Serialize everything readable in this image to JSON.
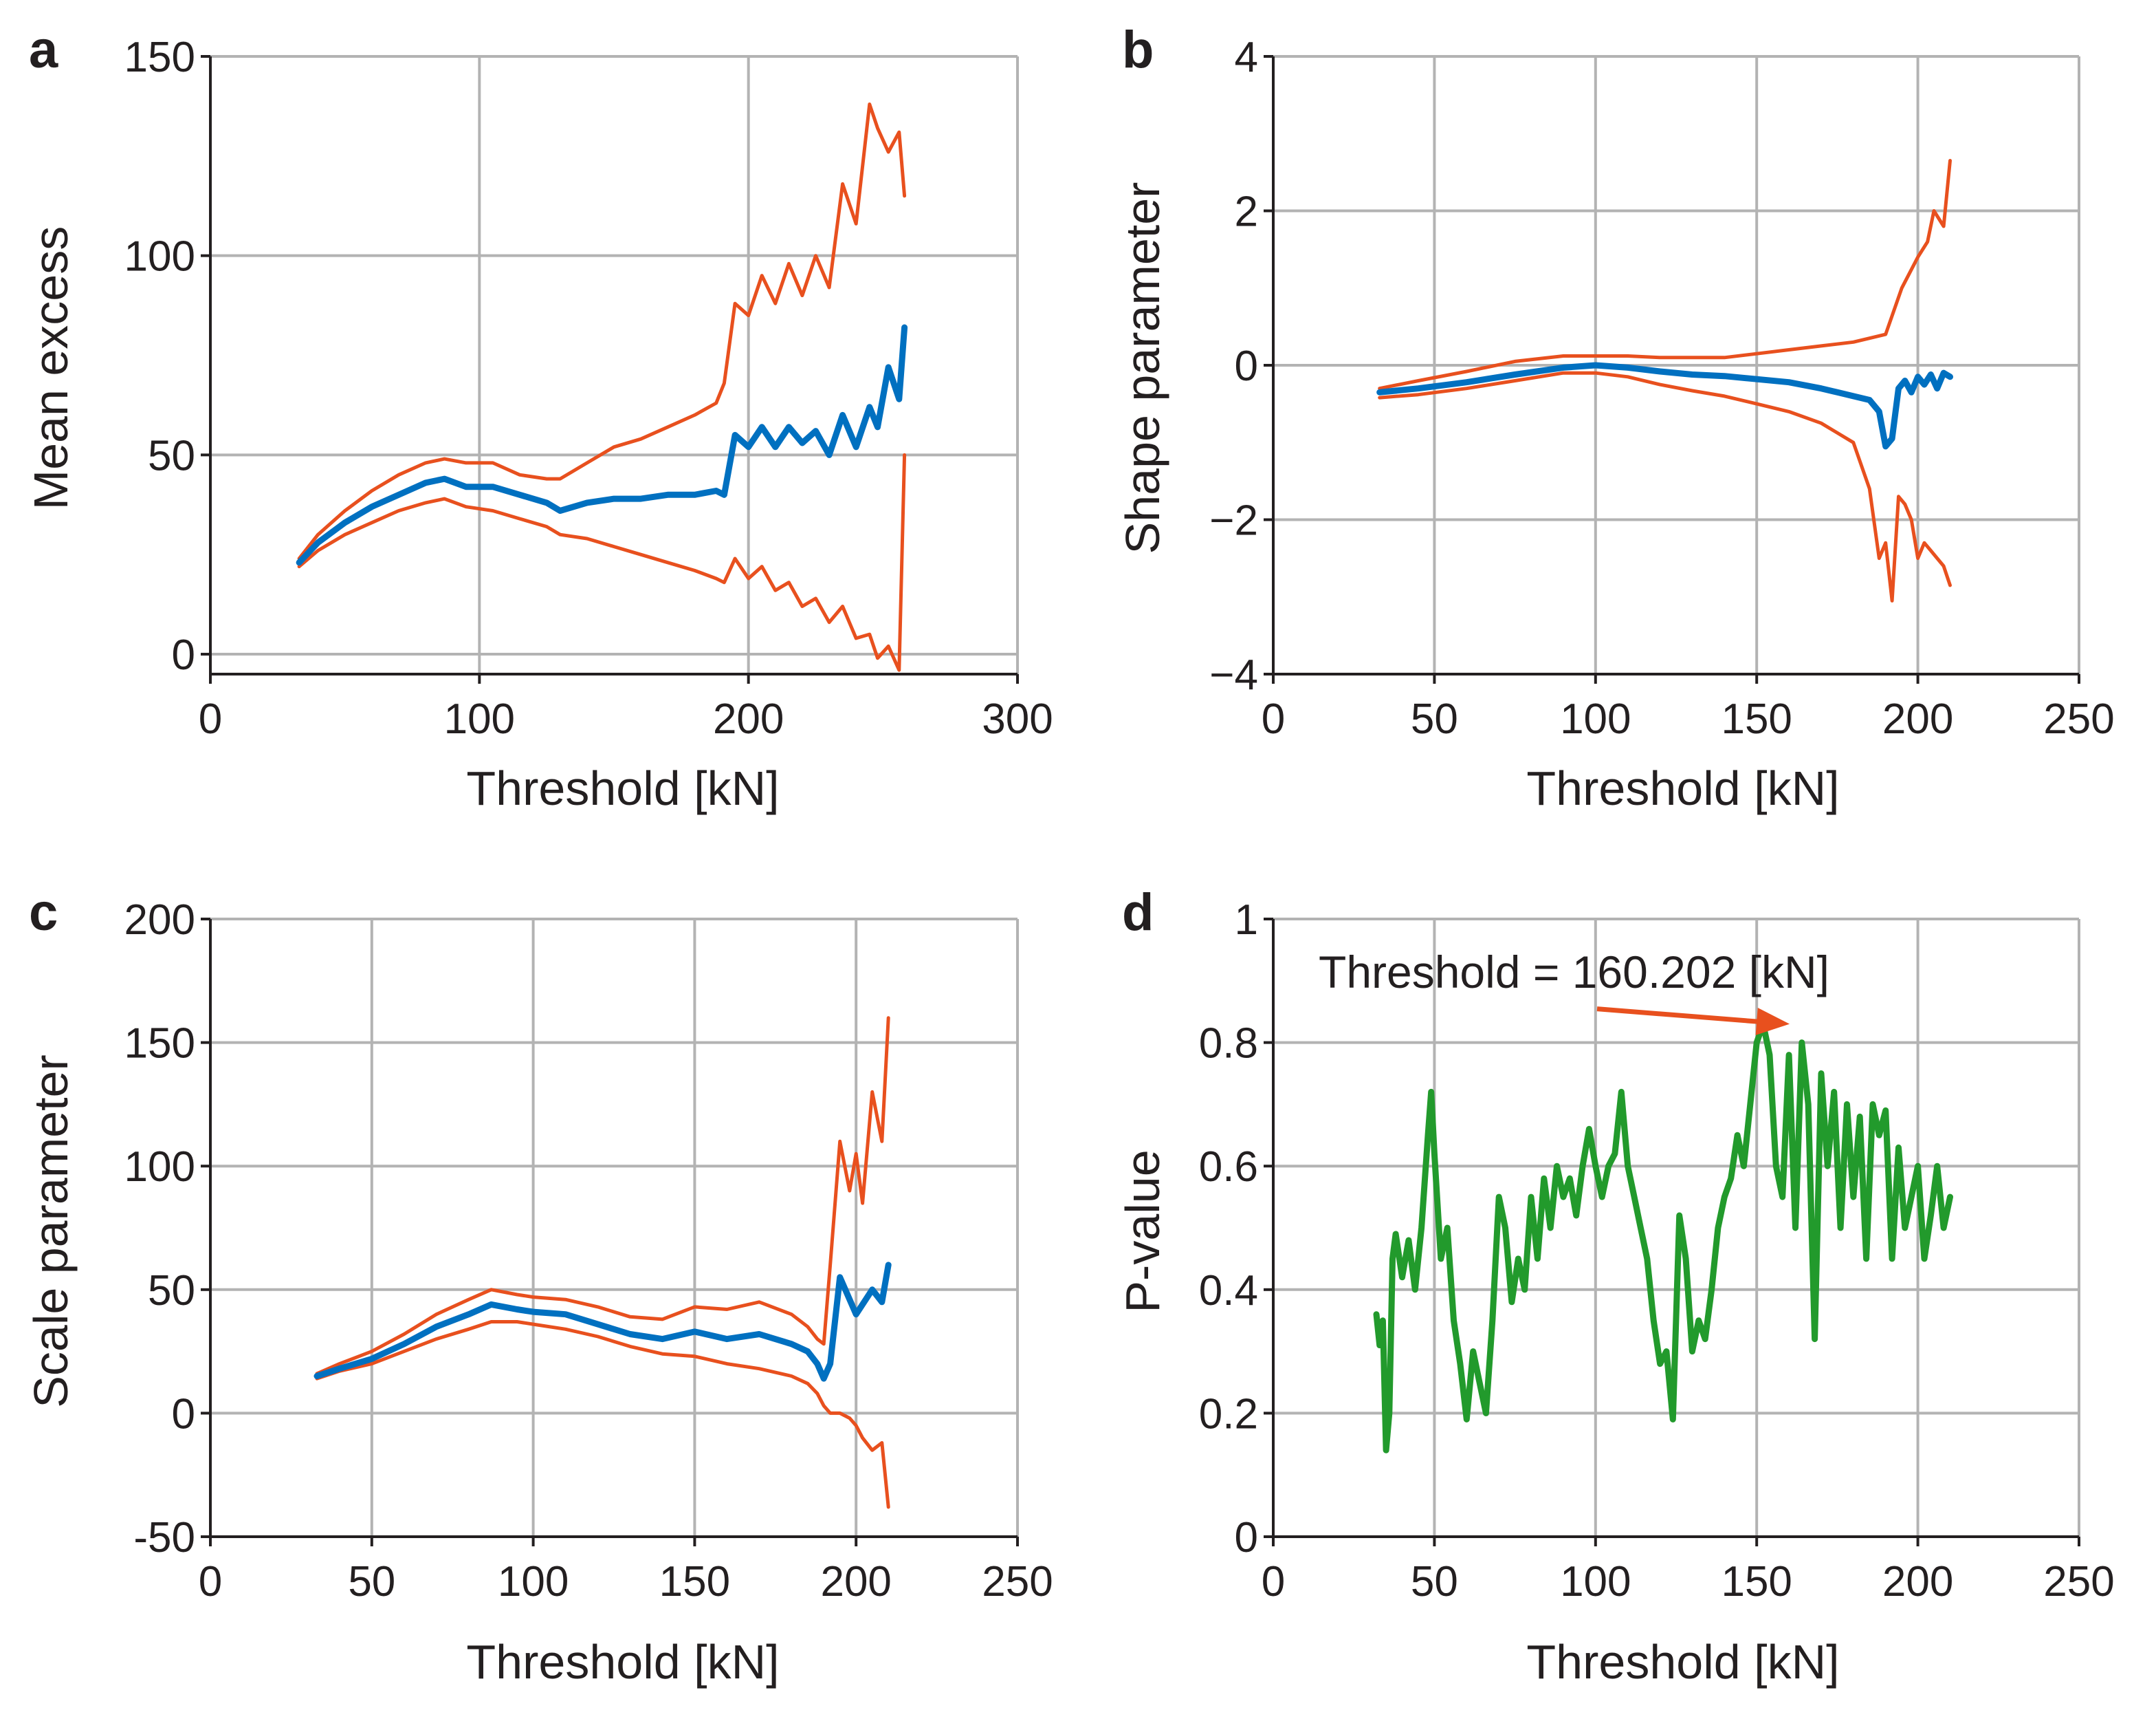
{
  "colors": {
    "central": "#0070c0",
    "bounds": "#e8501e",
    "pvalue": "#229a2c",
    "text": "#231f20",
    "grid": "#b3b3b3"
  },
  "chart_data": [
    {
      "id": "a",
      "panel_label": "a",
      "type": "line",
      "xlabel": "Threshold [kN]",
      "ylabel": "Mean excess",
      "xlim": [
        0,
        300
      ],
      "ylim": [
        -5,
        150
      ],
      "xticks": [
        0,
        100,
        200,
        300
      ],
      "yticks": [
        0,
        50,
        100,
        150
      ],
      "xtick_labels": [
        "0",
        "100",
        "200",
        "300"
      ],
      "ytick_labels": [
        "0",
        "50",
        "100",
        "150"
      ],
      "grid": true,
      "series": [
        {
          "name": "estimate",
          "role": "central",
          "x": [
            33,
            40,
            50,
            60,
            70,
            80,
            87,
            95,
            105,
            115,
            125,
            130,
            140,
            150,
            160,
            170,
            180,
            188,
            191,
            195,
            200,
            205,
            210,
            215,
            220,
            225,
            230,
            235,
            240,
            245,
            248,
            252,
            256,
            258
          ],
          "y": [
            23,
            28,
            33,
            37,
            40,
            43,
            44,
            42,
            42,
            40,
            38,
            36,
            38,
            39,
            39,
            40,
            40,
            41,
            40,
            55,
            52,
            57,
            52,
            57,
            53,
            56,
            50,
            60,
            52,
            62,
            57,
            72,
            64,
            82
          ]
        },
        {
          "name": "upper bound",
          "role": "bounds",
          "x": [
            33,
            40,
            50,
            60,
            70,
            80,
            87,
            95,
            105,
            115,
            125,
            130,
            140,
            150,
            160,
            170,
            180,
            188,
            191,
            195,
            200,
            205,
            210,
            215,
            220,
            225,
            230,
            235,
            240,
            245,
            248,
            252,
            256,
            258
          ],
          "y": [
            24,
            30,
            36,
            41,
            45,
            48,
            49,
            48,
            48,
            45,
            44,
            44,
            48,
            52,
            54,
            57,
            60,
            63,
            68,
            88,
            85,
            95,
            88,
            98,
            90,
            100,
            92,
            118,
            108,
            138,
            132,
            126,
            131,
            115
          ]
        },
        {
          "name": "lower bound",
          "role": "bounds",
          "x": [
            33,
            40,
            50,
            60,
            70,
            80,
            87,
            95,
            105,
            115,
            125,
            130,
            140,
            150,
            160,
            170,
            180,
            188,
            191,
            195,
            200,
            205,
            210,
            215,
            220,
            225,
            230,
            235,
            240,
            245,
            248,
            252,
            256,
            258
          ],
          "y": [
            22,
            26,
            30,
            33,
            36,
            38,
            39,
            37,
            36,
            34,
            32,
            30,
            29,
            27,
            25,
            23,
            21,
            19,
            18,
            24,
            19,
            22,
            16,
            18,
            12,
            14,
            8,
            12,
            4,
            5,
            -1,
            2,
            -4,
            50
          ]
        }
      ]
    },
    {
      "id": "b",
      "panel_label": "b",
      "type": "line",
      "xlabel": "Threshold [kN]",
      "ylabel": "Shape parameter",
      "xlim": [
        0,
        250
      ],
      "ylim": [
        -4,
        4
      ],
      "xticks": [
        0,
        50,
        100,
        150,
        200,
        250
      ],
      "yticks": [
        -4,
        -2,
        0,
        2,
        4
      ],
      "xtick_labels": [
        "0",
        "50",
        "100",
        "150",
        "200",
        "250"
      ],
      "ytick_labels": [
        "−4",
        "−2",
        "0",
        "2",
        "4"
      ],
      "grid": true,
      "series": [
        {
          "name": "estimate",
          "role": "central",
          "x": [
            33,
            45,
            60,
            75,
            90,
            100,
            110,
            120,
            130,
            140,
            150,
            160,
            170,
            175,
            180,
            185,
            188,
            190,
            192,
            194,
            196,
            198,
            200,
            202,
            204,
            206,
            208,
            210
          ],
          "y": [
            -0.35,
            -0.3,
            -0.22,
            -0.12,
            -0.03,
            0.0,
            -0.03,
            -0.08,
            -0.12,
            -0.14,
            -0.18,
            -0.22,
            -0.3,
            -0.35,
            -0.4,
            -0.45,
            -0.6,
            -1.05,
            -0.95,
            -0.3,
            -0.2,
            -0.35,
            -0.15,
            -0.25,
            -0.12,
            -0.3,
            -0.1,
            -0.15
          ]
        },
        {
          "name": "upper bound",
          "role": "bounds",
          "x": [
            33,
            45,
            60,
            75,
            90,
            100,
            110,
            120,
            130,
            140,
            150,
            160,
            170,
            180,
            185,
            190,
            195,
            200,
            203,
            205,
            208,
            210
          ],
          "y": [
            -0.3,
            -0.2,
            -0.08,
            0.05,
            0.12,
            0.12,
            0.12,
            0.1,
            0.1,
            0.1,
            0.15,
            0.2,
            0.25,
            0.3,
            0.35,
            0.4,
            1.0,
            1.4,
            1.6,
            2.0,
            1.8,
            2.65
          ]
        },
        {
          "name": "lower bound",
          "role": "bounds",
          "x": [
            33,
            45,
            60,
            75,
            90,
            100,
            110,
            120,
            130,
            140,
            150,
            160,
            170,
            180,
            185,
            188,
            190,
            192,
            194,
            196,
            198,
            200,
            202,
            204,
            206,
            208,
            210
          ],
          "y": [
            -0.42,
            -0.38,
            -0.3,
            -0.2,
            -0.1,
            -0.1,
            -0.15,
            -0.25,
            -0.33,
            -0.4,
            -0.5,
            -0.6,
            -0.75,
            -1.0,
            -1.6,
            -2.5,
            -2.3,
            -3.05,
            -1.7,
            -1.8,
            -2.0,
            -2.5,
            -2.3,
            -2.4,
            -2.5,
            -2.6,
            -2.85
          ]
        }
      ]
    },
    {
      "id": "c",
      "panel_label": "c",
      "type": "line",
      "xlabel": "Threshold [kN]",
      "ylabel": "Scale parameter",
      "xlim": [
        0,
        250
      ],
      "ylim": [
        -50,
        200
      ],
      "xticks": [
        0,
        50,
        100,
        150,
        200,
        250
      ],
      "yticks": [
        -50,
        0,
        50,
        100,
        150,
        200
      ],
      "xtick_labels": [
        "0",
        "50",
        "100",
        "150",
        "200",
        "250"
      ],
      "ytick_labels": [
        "-50",
        "0",
        "50",
        "100",
        "150",
        "200"
      ],
      "grid": true,
      "series": [
        {
          "name": "estimate",
          "role": "central",
          "x": [
            33,
            40,
            50,
            60,
            70,
            80,
            87,
            95,
            100,
            110,
            120,
            130,
            140,
            150,
            160,
            170,
            180,
            185,
            188,
            190,
            192,
            195,
            200,
            205,
            208,
            210
          ],
          "y": [
            15,
            18,
            22,
            28,
            35,
            40,
            44,
            42,
            41,
            40,
            36,
            32,
            30,
            33,
            30,
            32,
            28,
            25,
            20,
            14,
            20,
            55,
            40,
            50,
            45,
            60
          ]
        },
        {
          "name": "upper bound",
          "role": "bounds",
          "x": [
            33,
            40,
            50,
            60,
            70,
            80,
            87,
            95,
            100,
            110,
            120,
            130,
            140,
            150,
            160,
            170,
            180,
            185,
            188,
            190,
            192,
            195,
            198,
            200,
            202,
            205,
            208,
            210
          ],
          "y": [
            16,
            20,
            25,
            32,
            40,
            46,
            50,
            48,
            47,
            46,
            43,
            39,
            38,
            43,
            42,
            45,
            40,
            35,
            30,
            28,
            60,
            110,
            90,
            105,
            85,
            130,
            110,
            160
          ]
        },
        {
          "name": "lower bound",
          "role": "bounds",
          "x": [
            33,
            40,
            50,
            60,
            70,
            80,
            87,
            95,
            100,
            110,
            120,
            130,
            140,
            150,
            160,
            170,
            180,
            185,
            188,
            190,
            192,
            195,
            198,
            200,
            202,
            205,
            208,
            210
          ],
          "y": [
            14,
            17,
            20,
            25,
            30,
            34,
            37,
            37,
            36,
            34,
            31,
            27,
            24,
            23,
            20,
            18,
            15,
            12,
            8,
            3,
            0,
            0,
            -2,
            -5,
            -10,
            -15,
            -12,
            -38
          ]
        }
      ]
    },
    {
      "id": "d",
      "panel_label": "d",
      "type": "line",
      "xlabel": "Threshold [kN]",
      "ylabel": "P-value",
      "xlim": [
        0,
        250
      ],
      "ylim": [
        0,
        1
      ],
      "xticks": [
        0,
        50,
        100,
        150,
        200,
        250
      ],
      "yticks": [
        0,
        0.2,
        0.4,
        0.6,
        0.8,
        1
      ],
      "xtick_labels": [
        "0",
        "50",
        "100",
        "150",
        "200",
        "250"
      ],
      "ytick_labels": [
        "0",
        "0.2",
        "0.4",
        "0.6",
        "0.8",
        "1"
      ],
      "grid": true,
      "annotation": {
        "text": "Threshold = 160.202 [kN]",
        "x": 160.202,
        "y": 0.83
      },
      "series": [
        {
          "name": "P-value",
          "role": "pvalue",
          "x": [
            32,
            33,
            34,
            35,
            36,
            37,
            38,
            40,
            42,
            44,
            46,
            48,
            49,
            50,
            52,
            54,
            56,
            58,
            60,
            62,
            64,
            66,
            68,
            70,
            72,
            74,
            76,
            78,
            80,
            82,
            84,
            86,
            88,
            90,
            92,
            94,
            96,
            98,
            100,
            102,
            104,
            106,
            108,
            110,
            112,
            114,
            116,
            118,
            120,
            122,
            124,
            126,
            128,
            130,
            132,
            134,
            136,
            138,
            140,
            142,
            144,
            146,
            148,
            150,
            152,
            154,
            156,
            158,
            160,
            162,
            164,
            166,
            168,
            170,
            172,
            174,
            176,
            178,
            180,
            182,
            184,
            186,
            188,
            190,
            192,
            194,
            196,
            198,
            200,
            202,
            204,
            206,
            208,
            210
          ],
          "y": [
            0.36,
            0.31,
            0.35,
            0.14,
            0.2,
            0.45,
            0.49,
            0.42,
            0.48,
            0.4,
            0.5,
            0.65,
            0.72,
            0.62,
            0.45,
            0.5,
            0.35,
            0.28,
            0.19,
            0.3,
            0.25,
            0.2,
            0.35,
            0.55,
            0.5,
            0.38,
            0.45,
            0.4,
            0.55,
            0.45,
            0.58,
            0.5,
            0.6,
            0.55,
            0.58,
            0.52,
            0.6,
            0.66,
            0.6,
            0.55,
            0.6,
            0.62,
            0.72,
            0.6,
            0.55,
            0.5,
            0.45,
            0.35,
            0.28,
            0.3,
            0.19,
            0.52,
            0.45,
            0.3,
            0.35,
            0.32,
            0.4,
            0.5,
            0.55,
            0.58,
            0.65,
            0.6,
            0.7,
            0.8,
            0.83,
            0.78,
            0.6,
            0.55,
            0.78,
            0.5,
            0.8,
            0.7,
            0.32,
            0.75,
            0.6,
            0.72,
            0.5,
            0.7,
            0.55,
            0.68,
            0.45,
            0.7,
            0.65,
            0.69,
            0.45,
            0.63,
            0.5,
            0.55,
            0.6,
            0.45,
            0.52,
            0.6,
            0.5,
            0.55
          ]
        }
      ]
    }
  ]
}
